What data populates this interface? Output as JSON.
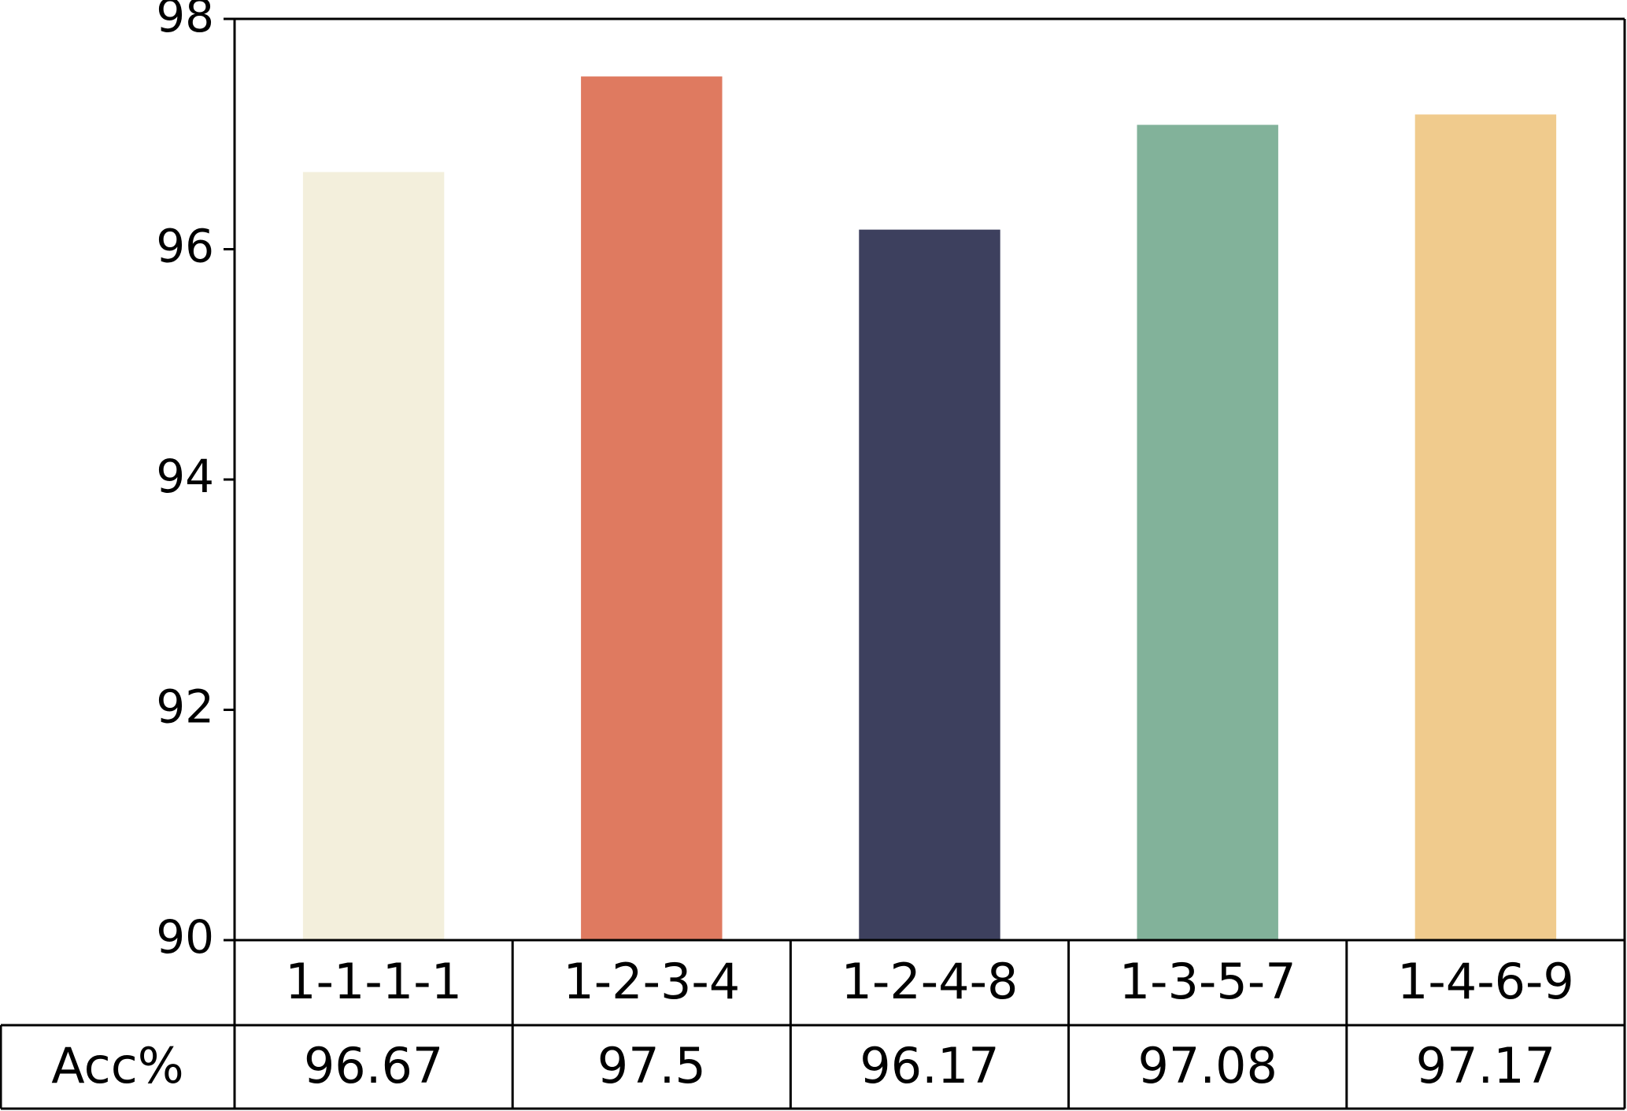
{
  "chart_data": {
    "type": "bar",
    "categories": [
      "1-1-1-1",
      "1-2-3-4",
      "1-2-4-8",
      "1-3-5-7",
      "1-4-6-9"
    ],
    "values": [
      96.67,
      97.5,
      96.17,
      97.08,
      97.17
    ],
    "colors": [
      "#f3efdc",
      "#df7a60",
      "#3d405e",
      "#82b29a",
      "#f0cb8d"
    ],
    "row_label": "Acc%",
    "ylim": [
      90,
      98
    ],
    "yticks": [
      90,
      92,
      94,
      96,
      98
    ]
  }
}
